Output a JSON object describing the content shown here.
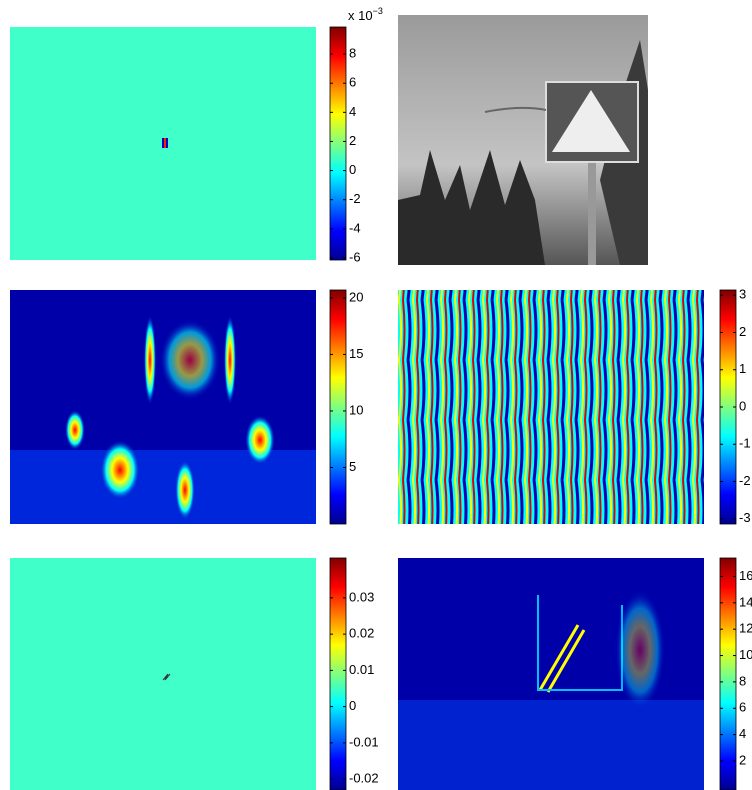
{
  "panels": [
    {
      "colorbar": {
        "ylim": [
          -6.14,
          9.86
        ],
        "yticks": [
          -6,
          -4,
          -2,
          0,
          2,
          4,
          6,
          8
        ],
        "multiplier": {
          "base": "x 10",
          "exponent": "−3"
        }
      }
    },
    {},
    {
      "colorbar": {
        "ylim": [
          0,
          20.7
        ],
        "yticks": [
          5,
          10,
          15,
          20
        ]
      }
    },
    {
      "colorbar": {
        "ylim": [
          -3.14,
          3.14
        ],
        "yticks": [
          -3,
          -2,
          -1,
          0,
          1,
          2,
          3
        ]
      }
    },
    {
      "colorbar": {
        "ylim": [
          -0.023,
          0.041
        ],
        "yticks": [
          -0.02,
          -0.01,
          0,
          0.01,
          0.02,
          0.03
        ]
      }
    },
    {
      "colorbar": {
        "ylim": [
          -0.2,
          17.4
        ],
        "yticks": [
          2,
          4,
          6,
          8,
          10,
          12,
          14,
          16
        ]
      }
    }
  ]
}
